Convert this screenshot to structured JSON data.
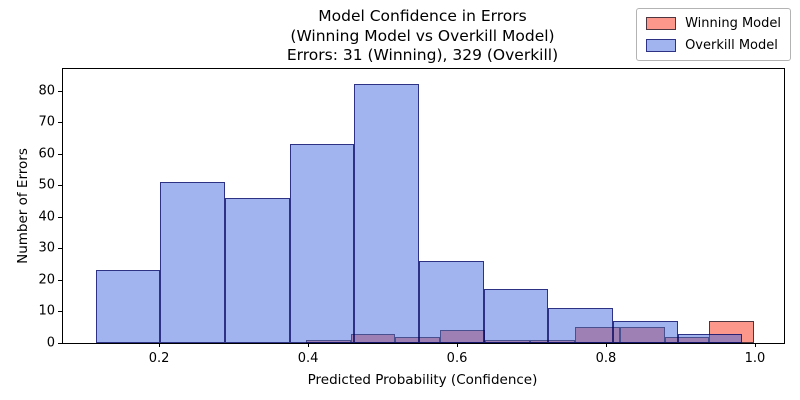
{
  "title": {
    "line1": "Model Confidence in Errors",
    "line2": "(Winning Model vs Overkill Model)",
    "line3": "Errors: 31 (Winning), 329 (Overkill)"
  },
  "axes": {
    "xlabel": "Predicted Probability (Confidence)",
    "ylabel": "Number of Errors",
    "x_tick_values": [
      0.2,
      0.4,
      0.6,
      0.8,
      1.0
    ],
    "x_tick_labels": [
      "0.2",
      "0.4",
      "0.6",
      "0.8",
      "1.0"
    ],
    "y_tick_values": [
      0,
      10,
      20,
      30,
      40,
      50,
      60,
      70,
      80
    ],
    "y_tick_labels": [
      "0",
      "10",
      "20",
      "30",
      "40",
      "50",
      "60",
      "70",
      "80"
    ]
  },
  "legend": {
    "items": [
      {
        "label": "Winning Model",
        "fill": "rgba(250,128,114,0.82)",
        "edge": "rgba(35,30,45,0.8)"
      },
      {
        "label": "Overkill Model",
        "fill": "rgba(67,106,224,0.5)",
        "edge": "rgba(0,0,90,0.72)"
      }
    ]
  },
  "chart_data": {
    "type": "bar",
    "subtype": "histogram",
    "title": "Model Confidence in Errors (Winning Model vs Overkill Model) Errors: 31 (Winning), 329 (Overkill)",
    "xlabel": "Predicted Probability (Confidence)",
    "ylabel": "Number of Errors",
    "xlim": [
      0.071,
      1.039
    ],
    "ylim": [
      0,
      86.9
    ],
    "grid": false,
    "legend_position": "upper right",
    "series": [
      {
        "name": "Winning Model",
        "total_errors": 31,
        "bin_start": 0.397,
        "bin_width": 0.0602,
        "counts": [
          1,
          3,
          2,
          4,
          1,
          1,
          5,
          5,
          2,
          7
        ],
        "fill": "rgba(250,128,114,0.82)",
        "edge": "rgba(35,30,45,0.8)"
      },
      {
        "name": "Overkill Model",
        "total_errors": 329,
        "bin_start": 0.115,
        "bin_width": 0.0868,
        "counts": [
          23,
          51,
          46,
          63,
          82,
          26,
          17,
          11,
          7,
          3
        ],
        "fill": "rgba(67,106,224,0.5)",
        "edge": "rgba(0,0,90,0.72)"
      }
    ]
  }
}
